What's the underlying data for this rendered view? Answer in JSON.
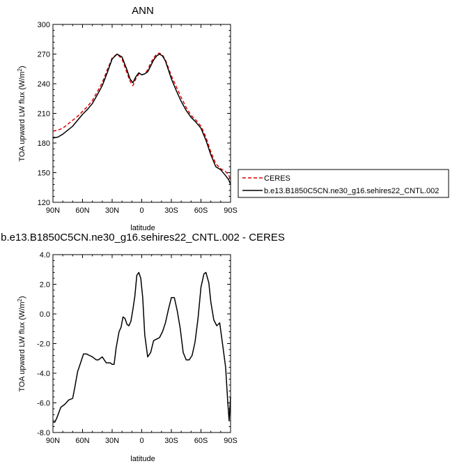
{
  "chart_data": [
    {
      "type": "line",
      "title": "ANN",
      "xlabel": "latitude",
      "ylabel": "TOA upward LW flux (W/m²)",
      "ylabel_text": "TOA upward LW flux (W/m",
      "ylabel_exp": "2",
      "ylabel_close": ")",
      "x_ticks": [
        {
          "value": 90,
          "label": "90N"
        },
        {
          "value": 60,
          "label": "60N"
        },
        {
          "value": 30,
          "label": "30N"
        },
        {
          "value": 0,
          "label": "0"
        },
        {
          "value": -30,
          "label": "30S"
        },
        {
          "value": -60,
          "label": "60S"
        },
        {
          "value": -90,
          "label": "90S"
        }
      ],
      "xlim": [
        90,
        -90
      ],
      "ylim": [
        120,
        300
      ],
      "y_ticks": [
        120,
        150,
        180,
        210,
        240,
        270,
        300
      ],
      "legend_position": "right",
      "series": [
        {
          "name": "CERES",
          "color": "#dd0000",
          "dash": "dashed",
          "x": [
            90,
            85,
            80,
            75,
            70,
            65,
            60,
            55,
            50,
            45,
            40,
            35,
            30,
            25,
            20,
            15,
            12,
            9,
            6,
            3,
            0,
            -3,
            -6,
            -9,
            -12,
            -15,
            -18,
            -21,
            -24,
            -27,
            -30,
            -35,
            -40,
            -45,
            -50,
            -55,
            -60,
            -65,
            -70,
            -75,
            -80,
            -85,
            -88,
            -90
          ],
          "y": [
            192,
            193,
            195,
            199,
            203,
            207,
            212,
            217,
            223,
            232,
            241,
            254,
            266,
            270,
            265,
            251,
            243,
            238,
            245,
            250,
            249,
            250,
            254,
            261,
            266,
            270,
            271,
            269,
            264,
            256,
            248,
            237,
            226,
            216,
            208,
            203,
            197,
            186,
            171,
            159,
            154,
            151,
            148,
            142
          ]
        },
        {
          "name": "b.e13.B1850C5CN.ne30_g16.sehires22_CNTL.002",
          "color": "#000000",
          "dash": "solid",
          "x": [
            90,
            85,
            80,
            75,
            70,
            65,
            60,
            55,
            50,
            45,
            40,
            35,
            30,
            25,
            20,
            15,
            12,
            9,
            6,
            3,
            0,
            -3,
            -6,
            -9,
            -12,
            -15,
            -18,
            -21,
            -24,
            -27,
            -30,
            -35,
            -40,
            -45,
            -50,
            -55,
            -60,
            -65,
            -70,
            -75,
            -80,
            -85,
            -88,
            -90
          ],
          "y": [
            185,
            186,
            189,
            193,
            197,
            203,
            209,
            214,
            220,
            229,
            238,
            251,
            265,
            270,
            267,
            254,
            245,
            241,
            247,
            251,
            249,
            250,
            252,
            258,
            264,
            268,
            270,
            268,
            263,
            254,
            245,
            233,
            222,
            213,
            206,
            201,
            195,
            183,
            168,
            156,
            153,
            147,
            143,
            138
          ]
        }
      ]
    },
    {
      "type": "line",
      "title": "b.e13.B1850C5CN.ne30_g16.sehires22_CNTL.002 - CERES",
      "xlabel": "latitude",
      "ylabel": "TOA upward LW flux (W/m²)",
      "ylabel_text": "TOA upward LW flux (W/m",
      "ylabel_exp": "2",
      "ylabel_close": ")",
      "x_ticks": [
        {
          "value": 90,
          "label": "90N"
        },
        {
          "value": 60,
          "label": "60N"
        },
        {
          "value": 30,
          "label": "30N"
        },
        {
          "value": 0,
          "label": "0"
        },
        {
          "value": -30,
          "label": "30S"
        },
        {
          "value": -60,
          "label": "60S"
        },
        {
          "value": -90,
          "label": "90S"
        }
      ],
      "xlim": [
        90,
        -90
      ],
      "ylim": [
        -8.0,
        4.0
      ],
      "y_ticks": [
        {
          "value": -8,
          "label": "-8.0"
        },
        {
          "value": -6,
          "label": "-6.0"
        },
        {
          "value": -4,
          "label": "-4.0"
        },
        {
          "value": -2,
          "label": "-2.0"
        },
        {
          "value": 0,
          "label": "0.0"
        },
        {
          "value": 2,
          "label": "2.0"
        },
        {
          "value": 4,
          "label": "4.0"
        }
      ],
      "series": [
        {
          "name": "",
          "color": "#000000",
          "dash": "solid",
          "x": [
            90,
            88,
            86,
            82,
            78,
            74,
            70,
            68,
            65,
            62,
            59,
            56,
            53,
            50,
            48,
            46,
            44,
            42,
            40,
            38,
            36,
            34,
            32,
            30,
            28,
            26,
            23,
            21,
            19,
            17,
            15,
            13,
            11,
            9,
            7,
            5,
            3,
            1,
            -1,
            -3,
            -6,
            -9,
            -12,
            -15,
            -18,
            -21,
            -24,
            -27,
            -30,
            -33,
            -36,
            -39,
            -42,
            -45,
            -48,
            -51,
            -54,
            -57,
            -60,
            -63,
            -65,
            -68,
            -70,
            -73,
            -76,
            -79,
            -82,
            -85,
            -87,
            -88.5,
            -90
          ],
          "y": [
            -7.3,
            -7.3,
            -7.0,
            -6.3,
            -6.1,
            -5.8,
            -5.7,
            -5.0,
            -3.9,
            -3.3,
            -2.7,
            -2.7,
            -2.8,
            -2.9,
            -3.0,
            -3.1,
            -3.1,
            -3.0,
            -2.9,
            -3.1,
            -3.3,
            -3.3,
            -3.3,
            -3.4,
            -3.4,
            -2.3,
            -1.2,
            -0.9,
            -0.2,
            -0.3,
            -0.7,
            -0.8,
            -0.5,
            0.3,
            1.2,
            2.6,
            2.8,
            2.4,
            1.1,
            -1.4,
            -2.9,
            -2.6,
            -1.8,
            -1.7,
            -1.6,
            -1.2,
            -0.6,
            0.3,
            1.1,
            1.1,
            0.2,
            -1.0,
            -2.6,
            -3.1,
            -3.1,
            -2.8,
            -1.9,
            -0.3,
            1.8,
            2.7,
            2.8,
            2.1,
            0.8,
            -0.4,
            -0.8,
            -0.6,
            -2.1,
            -3.6,
            -5.8,
            -7.2,
            -5.6
          ]
        }
      ]
    }
  ]
}
